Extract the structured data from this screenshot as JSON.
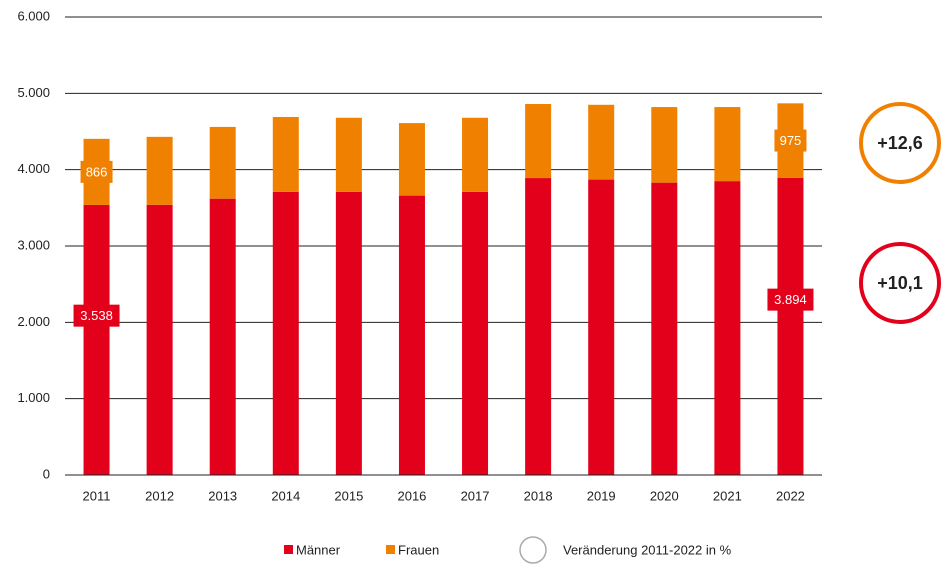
{
  "chart_data": {
    "type": "stacked-bar",
    "categories": [
      "2011",
      "2012",
      "2013",
      "2014",
      "2015",
      "2016",
      "2017",
      "2018",
      "2019",
      "2020",
      "2021",
      "2022"
    ],
    "series": [
      {
        "name": "Männer",
        "color": "#e2001a",
        "values": [
          3538,
          3540,
          3620,
          3710,
          3710,
          3660,
          3710,
          3890,
          3870,
          3830,
          3850,
          3894
        ],
        "value_labels": [
          "3.538",
          null,
          null,
          null,
          null,
          null,
          null,
          null,
          null,
          null,
          null,
          "3.894"
        ]
      },
      {
        "name": "Frauen",
        "color": "#f08000",
        "values": [
          866,
          890,
          940,
          980,
          970,
          950,
          970,
          970,
          980,
          990,
          970,
          975
        ],
        "value_labels": [
          "866",
          null,
          null,
          null,
          null,
          null,
          null,
          null,
          null,
          null,
          null,
          "975"
        ]
      }
    ],
    "ylim": [
      0,
      6000
    ],
    "yticks": [
      0,
      {
        "value": 1000,
        "label": "1.000"
      },
      {
        "value": 2000,
        "label": "2.000"
      },
      {
        "value": 3000,
        "label": "3.000"
      },
      {
        "value": 4000,
        "label": "4.000"
      },
      {
        "value": 5000,
        "label": "5.000"
      },
      {
        "value": 6000,
        "label": "6.000"
      }
    ],
    "grid": true,
    "annotations": [
      {
        "text": "+12,6",
        "color": "#f08000"
      },
      {
        "text": "+10,1",
        "color": "#e2001a"
      }
    ],
    "legend_note": "Veränderung 2011-2022 in %"
  }
}
